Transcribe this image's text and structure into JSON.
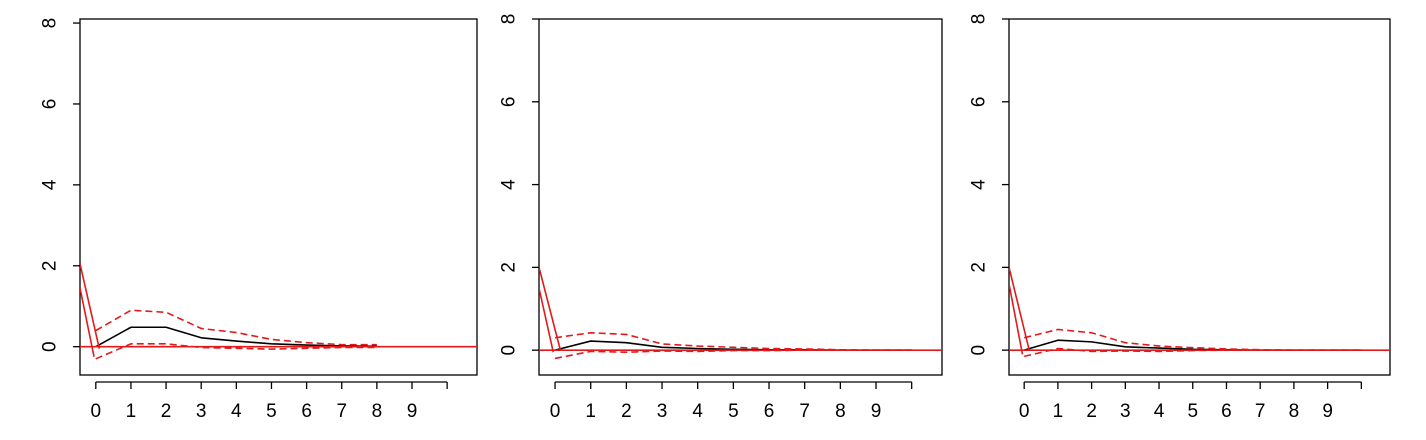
{
  "chart_data": [
    {
      "type": "line",
      "xlim": [
        -0.45,
        10.85
      ],
      "ylim": [
        -0.7,
        8.1
      ],
      "x_ticks": [
        0,
        1,
        2,
        3,
        4,
        5,
        6,
        7,
        8,
        9
      ],
      "x_tick_marks": [
        0,
        1,
        2,
        3,
        4,
        5,
        6,
        7,
        8,
        9,
        10
      ],
      "y_ticks": [
        0,
        2,
        4,
        6,
        8
      ],
      "series": [
        {
          "role": "estimate",
          "color": "#000000",
          "style": "solid",
          "x": [
            0,
            1,
            2,
            3,
            4,
            5,
            6,
            7,
            8
          ],
          "y": [
            0,
            0.48,
            0.48,
            0.22,
            0.14,
            0.07,
            0.04,
            0.02,
            0.01
          ]
        },
        {
          "role": "upper-band",
          "color": "#e31a1c",
          "style": "dashed",
          "x": [
            0,
            1,
            2,
            3,
            4,
            5,
            6,
            7,
            8
          ],
          "y": [
            0.4,
            0.9,
            0.85,
            0.45,
            0.35,
            0.18,
            0.1,
            0.05,
            0.05
          ]
        },
        {
          "role": "lower-band",
          "color": "#e31a1c",
          "style": "dashed",
          "x": [
            0,
            1,
            2,
            3,
            4,
            5,
            6,
            7,
            8
          ],
          "y": [
            -0.3,
            0.07,
            0.07,
            -0.02,
            -0.04,
            -0.06,
            -0.04,
            -0.02,
            -0.02
          ]
        },
        {
          "role": "reference-a",
          "color": "#e31a1c",
          "style": "solid",
          "x": [
            -0.45,
            0.1
          ],
          "y": [
            2.05,
            -0.05
          ]
        },
        {
          "role": "reference-b",
          "color": "#e31a1c",
          "style": "solid",
          "x": [
            -0.45,
            -0.05
          ],
          "y": [
            1.45,
            -0.25
          ]
        },
        {
          "role": "zero-line",
          "color": "#e31a1c",
          "style": "solid",
          "x": [
            -0.45,
            10.85
          ],
          "y": [
            0,
            0
          ]
        }
      ]
    },
    {
      "type": "line",
      "xlim": [
        -0.45,
        10.85
      ],
      "ylim": [
        -0.6,
        8.0
      ],
      "x_ticks": [
        0,
        1,
        2,
        3,
        4,
        5,
        6,
        7,
        8,
        9
      ],
      "x_tick_marks": [
        0,
        1,
        2,
        3,
        4,
        5,
        6,
        7,
        8,
        9,
        10
      ],
      "y_ticks": [
        0,
        2,
        4,
        6,
        8
      ],
      "series": [
        {
          "role": "estimate",
          "color": "#000000",
          "style": "solid",
          "x": [
            0,
            1,
            2,
            3,
            4,
            5,
            6,
            7,
            8,
            9,
            10
          ],
          "y": [
            0,
            0.22,
            0.18,
            0.07,
            0.04,
            0.02,
            0.01,
            0.01,
            0,
            0,
            0
          ]
        },
        {
          "role": "upper-band",
          "color": "#e31a1c",
          "style": "dashed",
          "x": [
            0,
            1,
            2,
            3,
            4,
            5,
            6,
            7,
            8,
            9,
            10
          ],
          "y": [
            0.3,
            0.42,
            0.38,
            0.15,
            0.1,
            0.07,
            0.04,
            0.03,
            0.01,
            0,
            0
          ]
        },
        {
          "role": "lower-band",
          "color": "#e31a1c",
          "style": "dashed",
          "x": [
            0,
            1,
            2,
            3,
            4,
            5,
            6,
            7,
            8,
            9,
            10
          ],
          "y": [
            -0.2,
            -0.03,
            -0.05,
            -0.02,
            -0.03,
            -0.01,
            -0.01,
            0,
            0,
            0,
            0
          ]
        },
        {
          "role": "reference-a",
          "color": "#e31a1c",
          "style": "solid",
          "x": [
            -0.45,
            0.15
          ],
          "y": [
            2.0,
            0.0
          ]
        },
        {
          "role": "reference-b",
          "color": "#e31a1c",
          "style": "solid",
          "x": [
            -0.45,
            -0.05
          ],
          "y": [
            1.5,
            -0.05
          ]
        },
        {
          "role": "zero-line",
          "color": "#e31a1c",
          "style": "solid",
          "x": [
            -0.45,
            10.85
          ],
          "y": [
            0,
            0
          ]
        }
      ]
    },
    {
      "type": "line",
      "xlim": [
        -0.45,
        10.85
      ],
      "ylim": [
        -0.6,
        8.0
      ],
      "x_ticks": [
        0,
        1,
        2,
        3,
        4,
        5,
        6,
        7,
        8,
        9
      ],
      "x_tick_marks": [
        0,
        1,
        2,
        3,
        4,
        5,
        6,
        7,
        8,
        9,
        10
      ],
      "y_ticks": [
        0,
        2,
        4,
        6,
        8
      ],
      "series": [
        {
          "role": "estimate",
          "color": "#000000",
          "style": "solid",
          "x": [
            0,
            1,
            2,
            3,
            4,
            5,
            6,
            7,
            8,
            9,
            10
          ],
          "y": [
            0,
            0.24,
            0.2,
            0.08,
            0.05,
            0.02,
            0.01,
            0,
            0,
            0,
            0
          ]
        },
        {
          "role": "upper-band",
          "color": "#e31a1c",
          "style": "dashed",
          "x": [
            0,
            1,
            2,
            3,
            4,
            5,
            6,
            7,
            8,
            9,
            10
          ],
          "y": [
            0.3,
            0.5,
            0.42,
            0.18,
            0.1,
            0.06,
            0.03,
            0.01,
            0,
            0,
            0
          ]
        },
        {
          "role": "lower-band",
          "color": "#e31a1c",
          "style": "dashed",
          "x": [
            0,
            1,
            2,
            3,
            4,
            5,
            6,
            7,
            8,
            9,
            10
          ],
          "y": [
            -0.15,
            0.04,
            -0.03,
            -0.02,
            -0.03,
            -0.01,
            0,
            0,
            0,
            0,
            0
          ]
        },
        {
          "role": "reference-a",
          "color": "#e31a1c",
          "style": "solid",
          "x": [
            -0.45,
            0.15
          ],
          "y": [
            2.0,
            0.0
          ]
        },
        {
          "role": "reference-b",
          "color": "#e31a1c",
          "style": "solid",
          "x": [
            -0.45,
            -0.05
          ],
          "y": [
            1.6,
            -0.1
          ]
        },
        {
          "role": "zero-line",
          "color": "#e31a1c",
          "style": "solid",
          "x": [
            -0.45,
            10.85
          ],
          "y": [
            0,
            0
          ]
        }
      ]
    }
  ]
}
